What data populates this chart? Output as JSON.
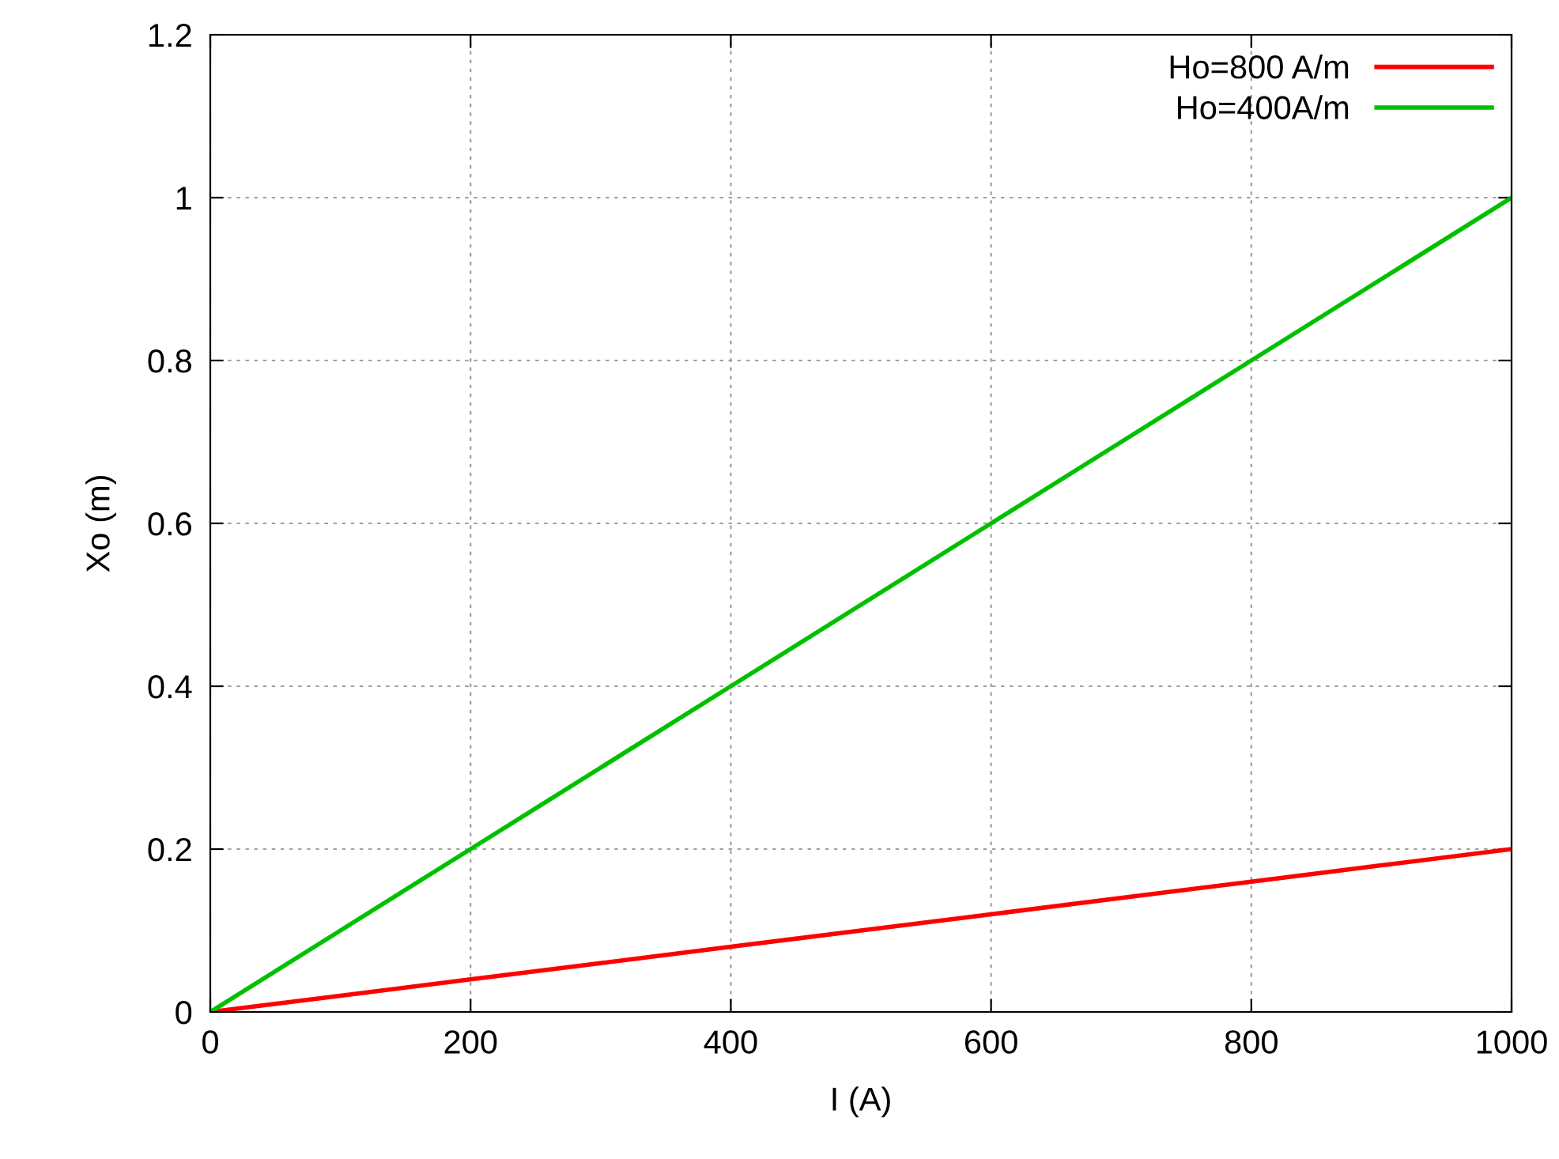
{
  "chart_data": {
    "type": "line",
    "xlabel": "I (A)",
    "ylabel": "Xo (m)",
    "x": [
      0,
      100,
      200,
      300,
      400,
      500,
      600,
      700,
      800,
      900,
      1000
    ],
    "series": [
      {
        "name": "Ho=800 A/m",
        "color": "#ff0000",
        "values": [
          0,
          0.02,
          0.04,
          0.06,
          0.08,
          0.1,
          0.12,
          0.14,
          0.16,
          0.18,
          0.2
        ]
      },
      {
        "name": "Ho=400A/m",
        "color": "#00c000",
        "values": [
          0,
          0.1,
          0.2,
          0.3,
          0.4,
          0.5,
          0.6,
          0.7,
          0.8,
          0.9,
          1.0
        ]
      }
    ],
    "xlim": [
      0,
      1000
    ],
    "xticks": [
      0,
      200,
      400,
      600,
      800,
      1000
    ],
    "ylim": [
      0,
      1.2
    ],
    "yticks": [
      0,
      0.2,
      0.4,
      0.6,
      0.8,
      1,
      1.2
    ],
    "grid": true,
    "legend": "top right",
    "line_style": "solid"
  }
}
